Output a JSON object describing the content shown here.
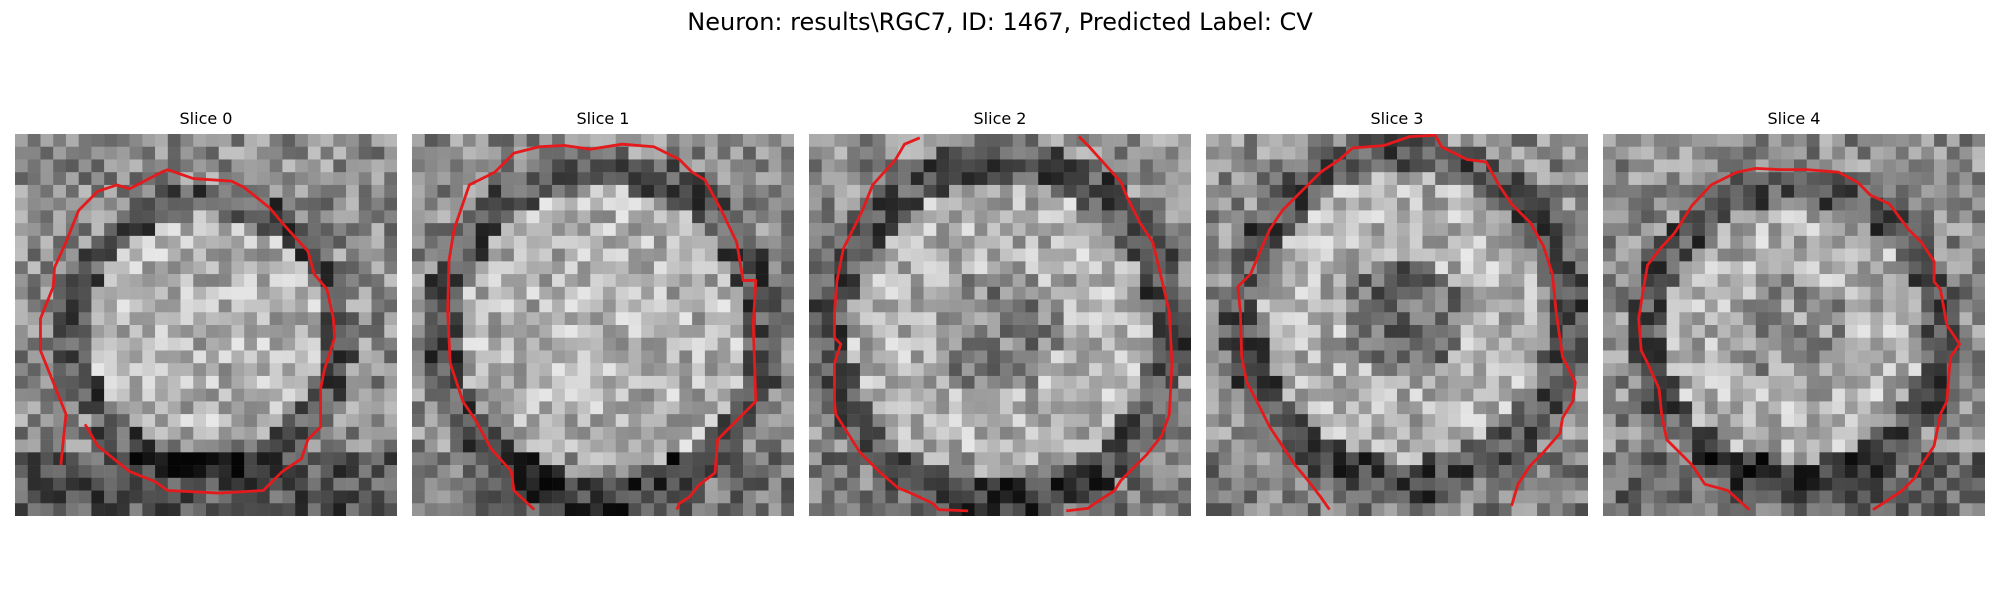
{
  "figure": {
    "title": "Neuron: results\\RGC7, ID: 1467, Predicted Label: CV"
  },
  "colors": {
    "background": "#ffffff",
    "contour": "#e41a1c",
    "colormap": "grayscale"
  },
  "panels": [
    {
      "title": "Slice 0",
      "grid": 30,
      "dark_core": 0.0,
      "ring_center": [
        0.5,
        0.52
      ],
      "ring_radius": 0.36,
      "bottom_shadow": 0.9
    },
    {
      "title": "Slice 1",
      "grid": 30,
      "dark_core": 0.0,
      "ring_center": [
        0.5,
        0.52
      ],
      "ring_radius": 0.44,
      "bottom_shadow": 0.4
    },
    {
      "title": "Slice 2",
      "grid": 30,
      "dark_core": 0.55,
      "ring_center": [
        0.5,
        0.52
      ],
      "ring_radius": 0.46,
      "bottom_shadow": 0.3
    },
    {
      "title": "Slice 3",
      "grid": 30,
      "dark_core": 0.8,
      "ring_center": [
        0.52,
        0.48
      ],
      "ring_radius": 0.44,
      "bottom_shadow": 0.2
    },
    {
      "title": "Slice 4",
      "grid": 30,
      "dark_core": 0.35,
      "ring_center": [
        0.5,
        0.52
      ],
      "ring_radius": 0.4,
      "bottom_shadow": 0.6
    }
  ]
}
